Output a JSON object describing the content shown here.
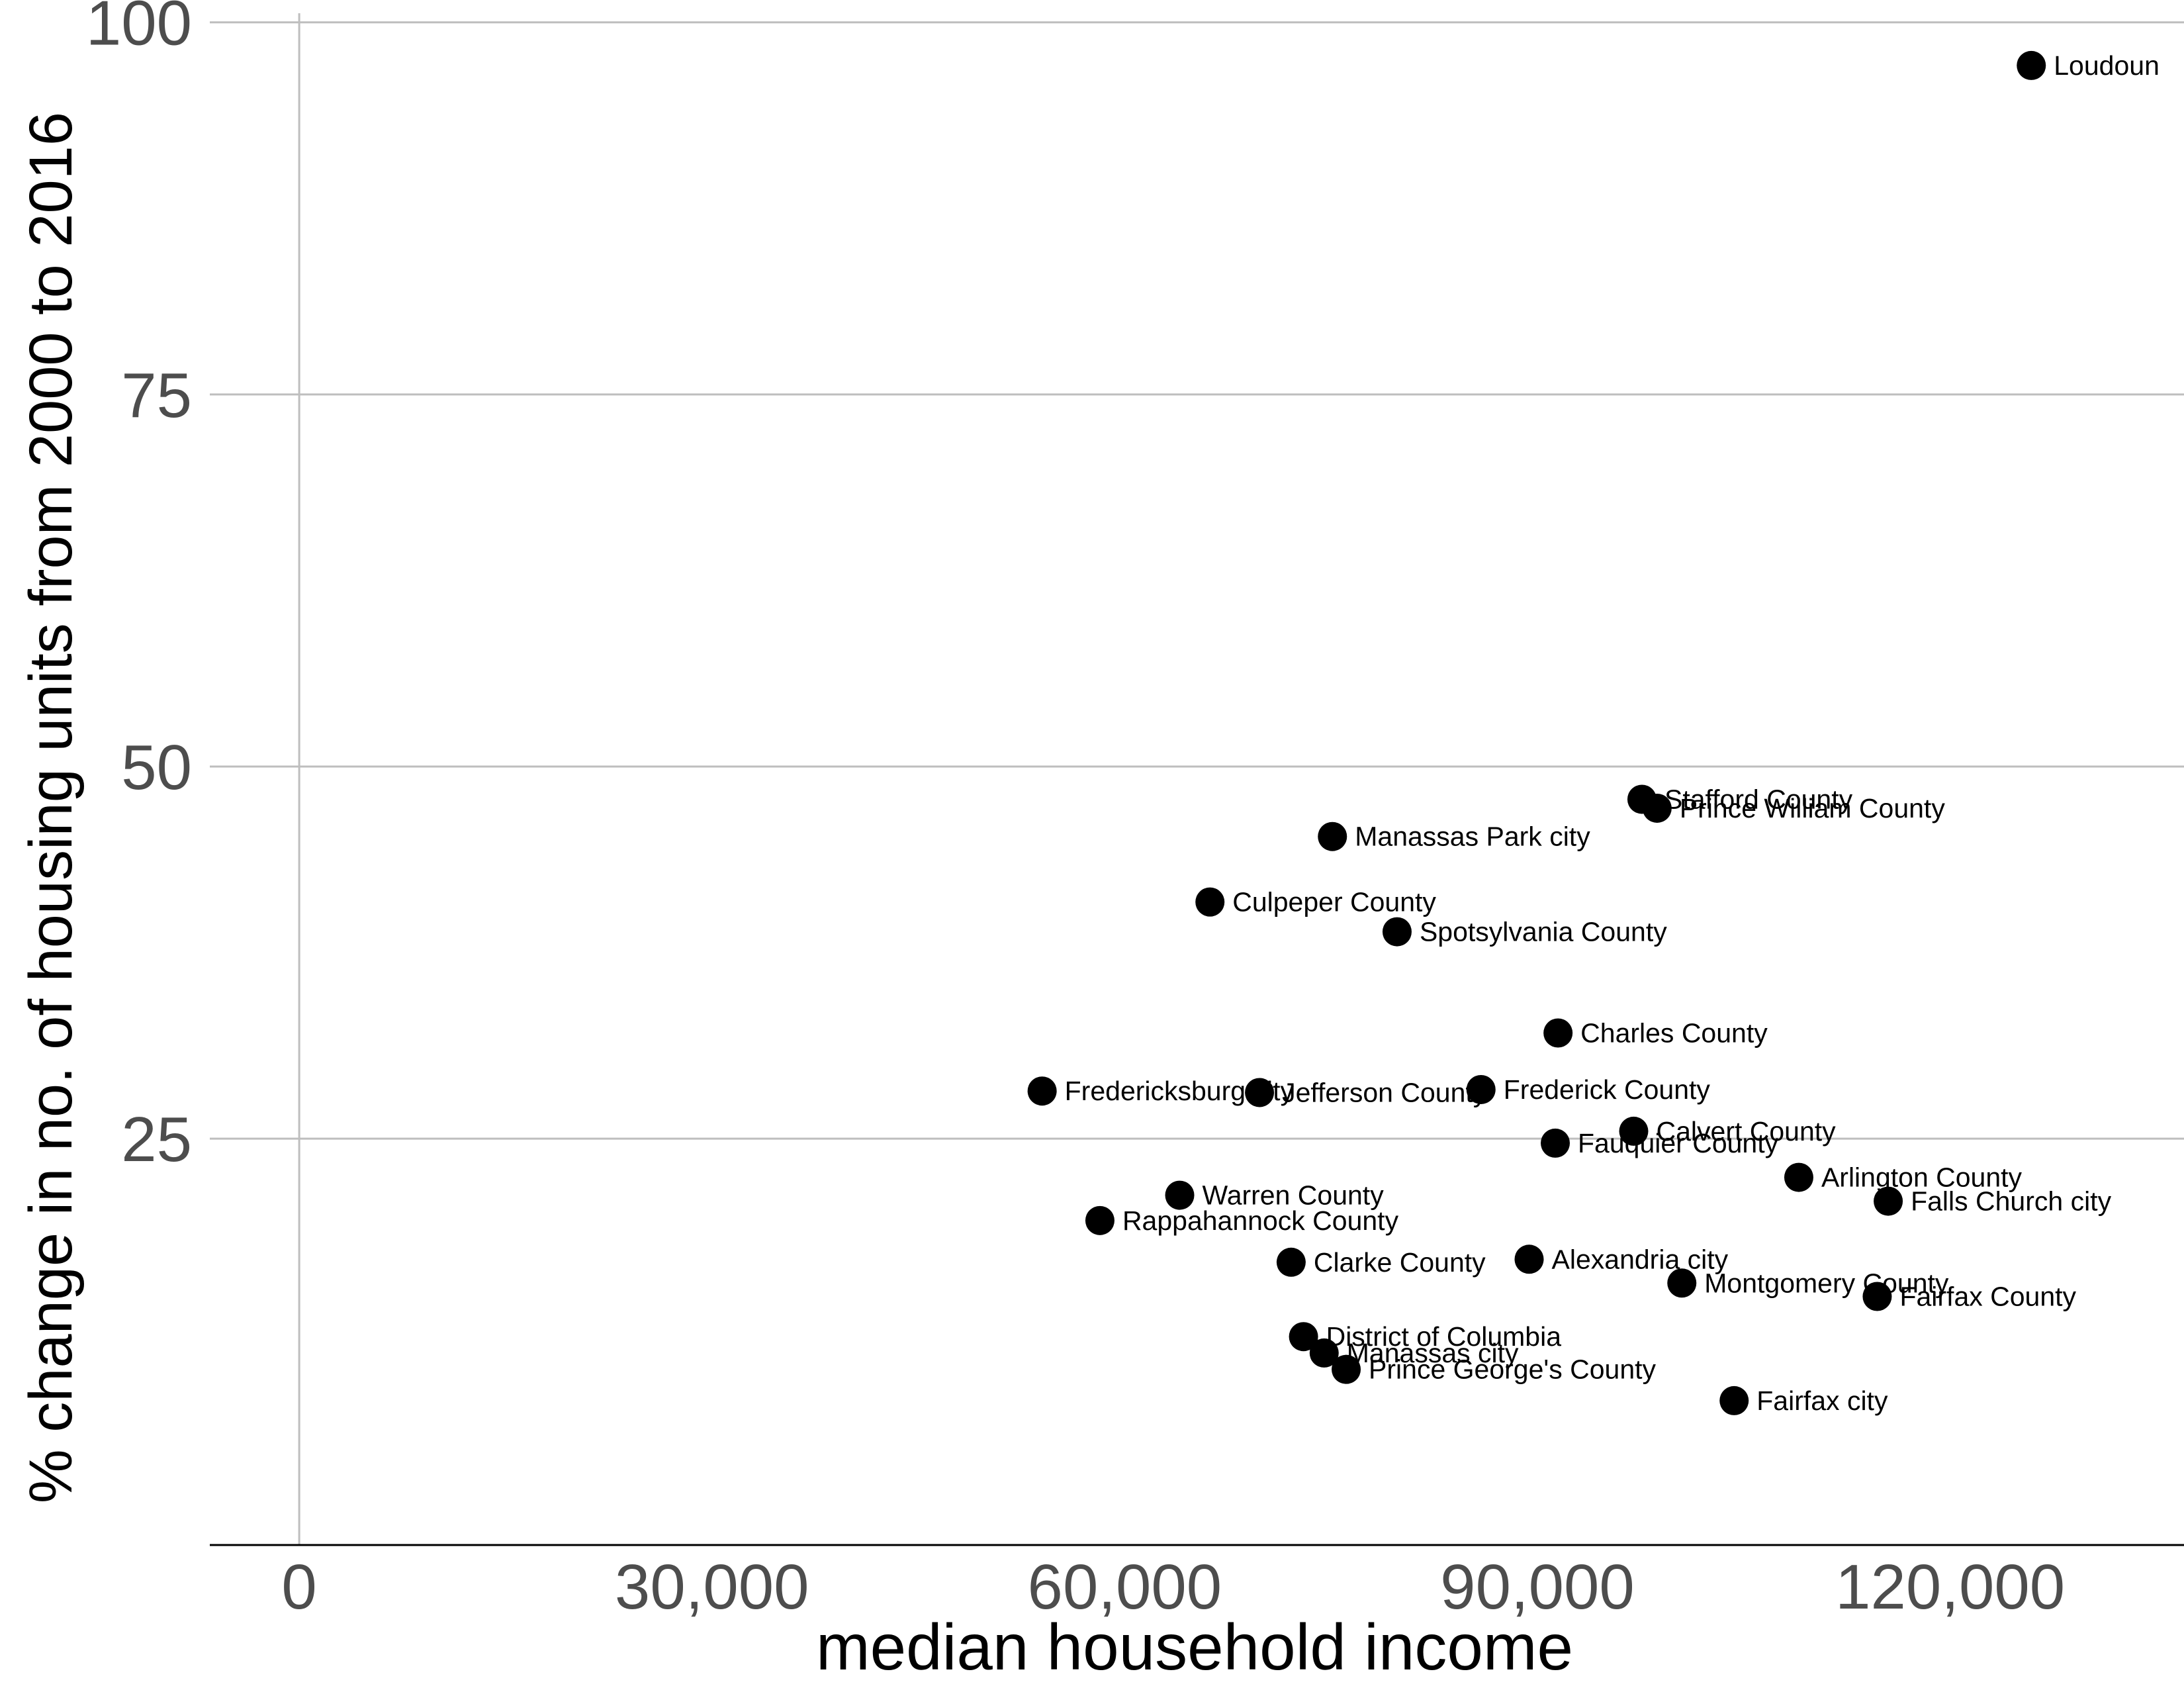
{
  "chart_data": {
    "type": "scatter",
    "title": "",
    "xlabel": "median household income",
    "ylabel": "% change in no. of housing units from 2000 to 2016",
    "xlim": [
      -6500,
      137000
    ],
    "ylim": [
      -2.3,
      101.5
    ],
    "x_ticks": [
      0,
      30000,
      60000,
      90000,
      120000
    ],
    "x_tick_labels": [
      "0",
      "30,000",
      "60,000",
      "90,000",
      "120,000"
    ],
    "y_ticks": [
      25,
      50,
      75,
      100
    ],
    "y_tick_labels": [
      "25",
      "50",
      "75",
      "100"
    ],
    "grid": "horizontal major gridlines",
    "point_color": "#000000",
    "gridline_color": "#bebebe",
    "points": [
      {
        "label": "Loudoun",
        "x": 125900,
        "y": 97.1
      },
      {
        "label": "Stafford County",
        "x": 97600,
        "y": 47.8
      },
      {
        "label": "Prince William County",
        "x": 98700,
        "y": 47.2
      },
      {
        "label": "Manassas Park city",
        "x": 75100,
        "y": 45.3
      },
      {
        "label": "Culpeper County",
        "x": 66200,
        "y": 40.9
      },
      {
        "label": "Spotsylvania County",
        "x": 79800,
        "y": 38.9
      },
      {
        "label": "Charles County",
        "x": 91500,
        "y": 32.1
      },
      {
        "label": "Fredericksburg city",
        "x": 54000,
        "y": 28.2
      },
      {
        "label": "Jefferson County",
        "x": 69800,
        "y": 28.1
      },
      {
        "label": "Frederick County",
        "x": 85900,
        "y": 28.3
      },
      {
        "label": "Calvert County",
        "x": 97000,
        "y": 25.5
      },
      {
        "label": "Fauquier County",
        "x": 91300,
        "y": 24.7
      },
      {
        "label": "Arlington County",
        "x": 109000,
        "y": 22.4
      },
      {
        "label": "Falls Church city",
        "x": 115500,
        "y": 20.8
      },
      {
        "label": "Warren County",
        "x": 64000,
        "y": 21.2
      },
      {
        "label": "Rappahannock County",
        "x": 58200,
        "y": 19.5
      },
      {
        "label": "Clarke County",
        "x": 72100,
        "y": 16.7
      },
      {
        "label": "Alexandria city",
        "x": 89400,
        "y": 16.9
      },
      {
        "label": "Montgomery County",
        "x": 100500,
        "y": 15.3
      },
      {
        "label": "Fairfax County",
        "x": 114700,
        "y": 14.4
      },
      {
        "label": "District of Columbia",
        "x": 73000,
        "y": 11.7
      },
      {
        "label": "Manassas city",
        "x": 74500,
        "y": 10.6
      },
      {
        "label": "Prince George's County",
        "x": 76100,
        "y": 9.5
      },
      {
        "label": "Fairfax city",
        "x": 104300,
        "y": 7.4
      }
    ]
  }
}
